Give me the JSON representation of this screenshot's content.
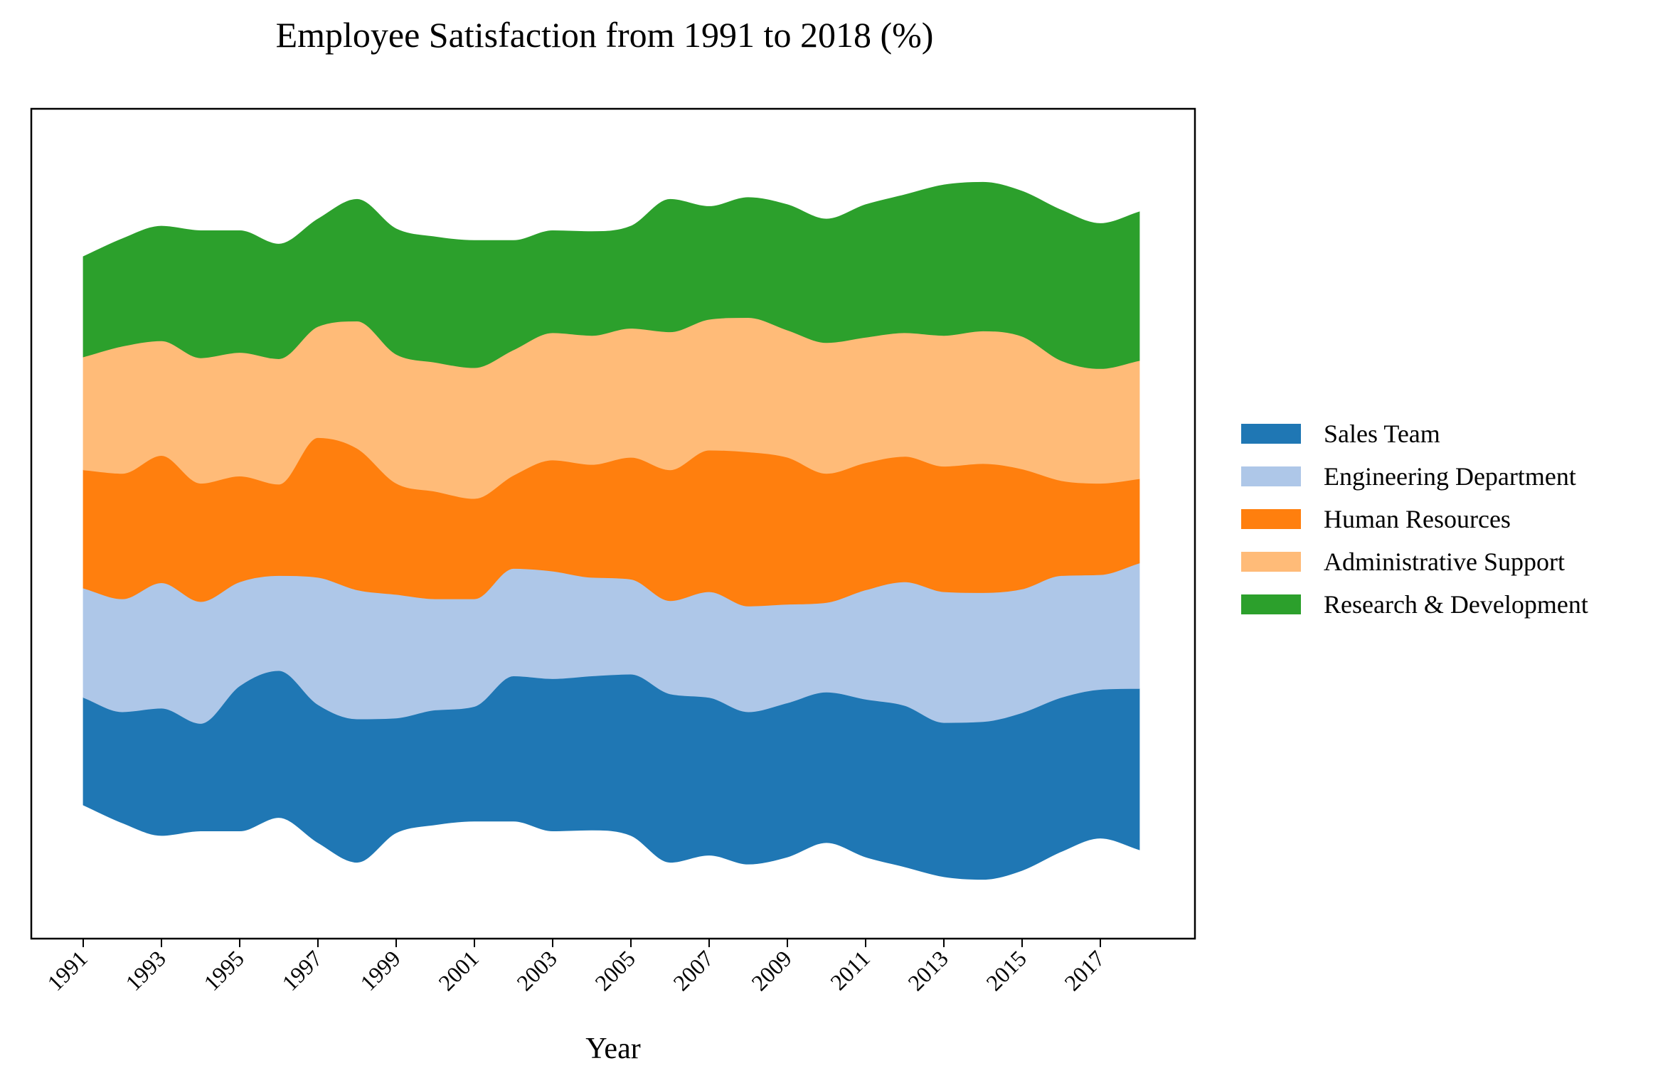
{
  "chart_data": {
    "type": "area",
    "subtype": "streamgraph",
    "title": "Employee Satisfaction from 1991 to 2018 (%)",
    "xlabel": "Year",
    "ylabel": "",
    "x": [
      1991,
      1992,
      1993,
      1994,
      1995,
      1996,
      1997,
      1998,
      1999,
      2000,
      2001,
      2002,
      2003,
      2004,
      2005,
      2006,
      2007,
      2008,
      2009,
      2010,
      2011,
      2012,
      2013,
      2014,
      2015,
      2016,
      2017,
      2018
    ],
    "x_tick_labels": [
      "1991",
      "1993",
      "1995",
      "1997",
      "1999",
      "2001",
      "2003",
      "2005",
      "2007",
      "2009",
      "2011",
      "2013",
      "2015",
      "2017"
    ],
    "legend_position": "center-right",
    "grid": false,
    "y_ticks_shown": false,
    "series": [
      {
        "name": "Sales Team",
        "color": "#1f77b4",
        "values": [
          60,
          62,
          71,
          60,
          81,
          82,
          77,
          80,
          64,
          64,
          64,
          81,
          85,
          86,
          90,
          94,
          88,
          85,
          86,
          84,
          88,
          90,
          86,
          88,
          88,
          86,
          83,
          90
        ]
      },
      {
        "name": "Engineering Department",
        "color": "#aec7e8",
        "values": [
          61,
          63,
          70,
          68,
          58,
          53,
          71,
          72,
          69,
          62,
          60,
          60,
          60,
          55,
          53,
          52,
          59,
          59,
          55,
          50,
          61,
          69,
          73,
          72,
          69,
          68,
          64,
          70
        ]
      },
      {
        "name": "Human Resources",
        "color": "#ff7f0e",
        "values": [
          66,
          70,
          71,
          66,
          59,
          51,
          78,
          79,
          62,
          60,
          56,
          52,
          62,
          63,
          68,
          73,
          79,
          86,
          82,
          72,
          71,
          70,
          70,
          72,
          67,
          53,
          51,
          47
        ]
      },
      {
        "name": "Administrative Support",
        "color": "#ffbb78",
        "values": [
          63,
          71,
          64,
          70,
          69,
          70,
          62,
          71,
          72,
          72,
          73,
          70,
          71,
          72,
          72,
          77,
          73,
          75,
          71,
          73,
          70,
          69,
          73,
          74,
          74,
          67,
          64,
          66
        ]
      },
      {
        "name": "Research & Development",
        "color": "#2ca02c",
        "values": [
          56,
          60,
          64,
          71,
          68,
          64,
          60,
          68,
          70,
          70,
          71,
          61,
          57,
          58,
          57,
          74,
          63,
          67,
          70,
          69,
          74,
          77,
          84,
          83,
          81,
          84,
          81,
          83
        ]
      }
    ]
  }
}
